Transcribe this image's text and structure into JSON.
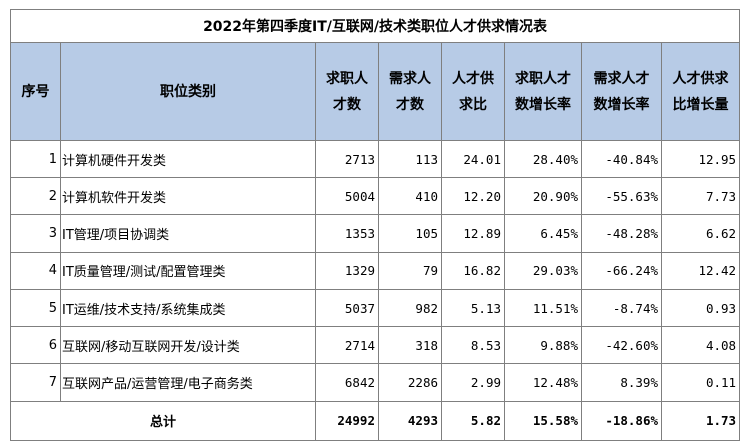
{
  "title": "2022年第四季度IT/互联网/技术类职位人才供求情况表",
  "headers": [
    "序号",
    "职位类别",
    "求职人才数",
    "需求人才数",
    "人才供求比",
    "求职人才数增长率",
    "需求人才数增长率",
    "人才供求比增长量"
  ],
  "rows": [
    {
      "idx": "1",
      "cat": "计算机硬件开发类",
      "seek": "2713",
      "demand": "113",
      "ratio": "24.01",
      "seek_growth": "28.40%",
      "demand_growth": "-40.84%",
      "ratio_change": "12.95"
    },
    {
      "idx": "2",
      "cat": "计算机软件开发类",
      "seek": "5004",
      "demand": "410",
      "ratio": "12.20",
      "seek_growth": "20.90%",
      "demand_growth": "-55.63%",
      "ratio_change": "7.73"
    },
    {
      "idx": "3",
      "cat": "IT管理/项目协调类",
      "seek": "1353",
      "demand": "105",
      "ratio": "12.89",
      "seek_growth": "6.45%",
      "demand_growth": "-48.28%",
      "ratio_change": "6.62"
    },
    {
      "idx": "4",
      "cat": "IT质量管理/测试/配置管理类",
      "seek": "1329",
      "demand": "79",
      "ratio": "16.82",
      "seek_growth": "29.03%",
      "demand_growth": "-66.24%",
      "ratio_change": "12.42"
    },
    {
      "idx": "5",
      "cat": "IT运维/技术支持/系统集成类",
      "seek": "5037",
      "demand": "982",
      "ratio": "5.13",
      "seek_growth": "11.51%",
      "demand_growth": "-8.74%",
      "ratio_change": "0.93"
    },
    {
      "idx": "6",
      "cat": "互联网/移动互联网开发/设计类",
      "seek": "2714",
      "demand": "318",
      "ratio": "8.53",
      "seek_growth": "9.88%",
      "demand_growth": "-42.60%",
      "ratio_change": "4.08"
    },
    {
      "idx": "7",
      "cat": "互联网产品/运营管理/电子商务类",
      "seek": "6842",
      "demand": "2286",
      "ratio": "2.99",
      "seek_growth": "12.48%",
      "demand_growth": "8.39%",
      "ratio_change": "0.11"
    }
  ],
  "total": {
    "label": "总计",
    "seek": "24992",
    "demand": "4293",
    "ratio": "5.82",
    "seek_growth": "15.58%",
    "demand_growth": "-18.86%",
    "ratio_change": "1.73"
  },
  "colors": {
    "header_bg": "#b7cbe6",
    "border": "#7f7f7f"
  }
}
